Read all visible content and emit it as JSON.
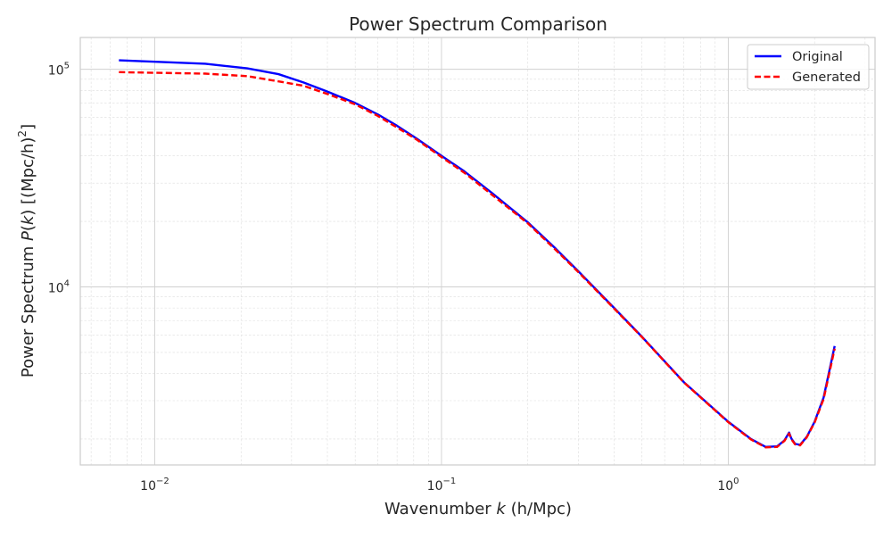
{
  "chart_data": {
    "type": "line",
    "title": "Power Spectrum Comparison",
    "xlabel": {
      "prefix": "Wavenumber ",
      "var": "k",
      "suffix": " (h/Mpc)"
    },
    "ylabel": {
      "prefix": "Power Spectrum ",
      "var": "P",
      "mid": "(",
      "var2": "k",
      "suffix": ") [(Mpc/h)",
      "exp": "2",
      "end": "]"
    },
    "x_scale": "log",
    "y_scale": "log",
    "xlim": [
      0.0055,
      3.25
    ],
    "ylim": [
      1520,
      140000
    ],
    "x_ticks": [
      {
        "value": 0.01,
        "base": "10",
        "exp": "−2"
      },
      {
        "value": 0.1,
        "base": "10",
        "exp": "−1"
      },
      {
        "value": 1,
        "base": "10",
        "exp": "0"
      }
    ],
    "y_ticks": [
      {
        "value": 10000,
        "base": "10",
        "exp": "4"
      },
      {
        "value": 100000,
        "base": "10",
        "exp": "5"
      }
    ],
    "grid": true,
    "legend_position": "top-right",
    "series": [
      {
        "name": "Original",
        "color": "#0000ff",
        "style": "solid",
        "x": [
          0.0075,
          0.015,
          0.021,
          0.027,
          0.033,
          0.04,
          0.05,
          0.06,
          0.07,
          0.082,
          0.1,
          0.12,
          0.15,
          0.2,
          0.25,
          0.3,
          0.4,
          0.5,
          0.7,
          1.0,
          1.2,
          1.35,
          1.48,
          1.57,
          1.63,
          1.66,
          1.71,
          1.78,
          1.88,
          2.0,
          2.15,
          2.35
        ],
        "y": [
          110000,
          106000,
          101000,
          95000,
          87000,
          79000,
          70000,
          62000,
          55000,
          48000,
          40000,
          34000,
          27000,
          19800,
          15000,
          11800,
          8000,
          5900,
          3650,
          2400,
          2000,
          1840,
          1850,
          1970,
          2140,
          2010,
          1900,
          1880,
          2050,
          2400,
          3100,
          5350
        ]
      },
      {
        "name": "Generated",
        "color": "#ff0000",
        "style": "dashed",
        "x": [
          0.0075,
          0.015,
          0.021,
          0.027,
          0.033,
          0.04,
          0.05,
          0.06,
          0.07,
          0.082,
          0.1,
          0.12,
          0.15,
          0.2,
          0.25,
          0.3,
          0.4,
          0.5,
          0.7,
          1.0,
          1.2,
          1.35,
          1.48,
          1.57,
          1.63,
          1.66,
          1.71,
          1.78,
          1.88,
          2.0,
          2.15,
          2.35
        ],
        "y": [
          97000,
          95500,
          93000,
          88000,
          84000,
          77000,
          69000,
          61000,
          54000,
          47500,
          39500,
          33500,
          26500,
          19600,
          14800,
          11700,
          7950,
          5880,
          3640,
          2390,
          1990,
          1830,
          1840,
          1960,
          2120,
          1995,
          1890,
          1870,
          2040,
          2380,
          3050,
          5200
        ]
      }
    ]
  }
}
